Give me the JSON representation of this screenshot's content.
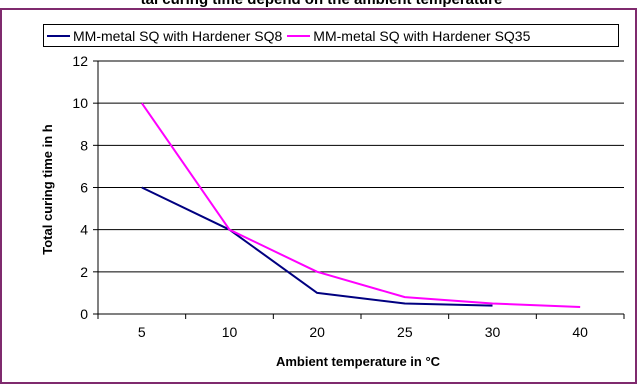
{
  "page": {
    "title": "tal curing time depend on the ambient temperature"
  },
  "chart_data": {
    "type": "line",
    "categories": [
      "5",
      "10",
      "20",
      "25",
      "30",
      "40"
    ],
    "series": [
      {
        "name": "MM-metal SQ with Hardener SQ8",
        "color": "#000080",
        "values": [
          6,
          4,
          1,
          0.5,
          0.4,
          null
        ]
      },
      {
        "name": "MM-metal SQ with Hardener SQ35",
        "color": "#ff00ff",
        "values": [
          10,
          4,
          2,
          0.8,
          0.5,
          0.33
        ]
      }
    ],
    "xlabel": "Ambient temperature in °C",
    "ylabel": "Total curing time in h",
    "ylim": [
      0,
      12
    ],
    "yticks": [
      0,
      2,
      4,
      6,
      8,
      10,
      12
    ],
    "grid": true,
    "legend_position": "top"
  }
}
